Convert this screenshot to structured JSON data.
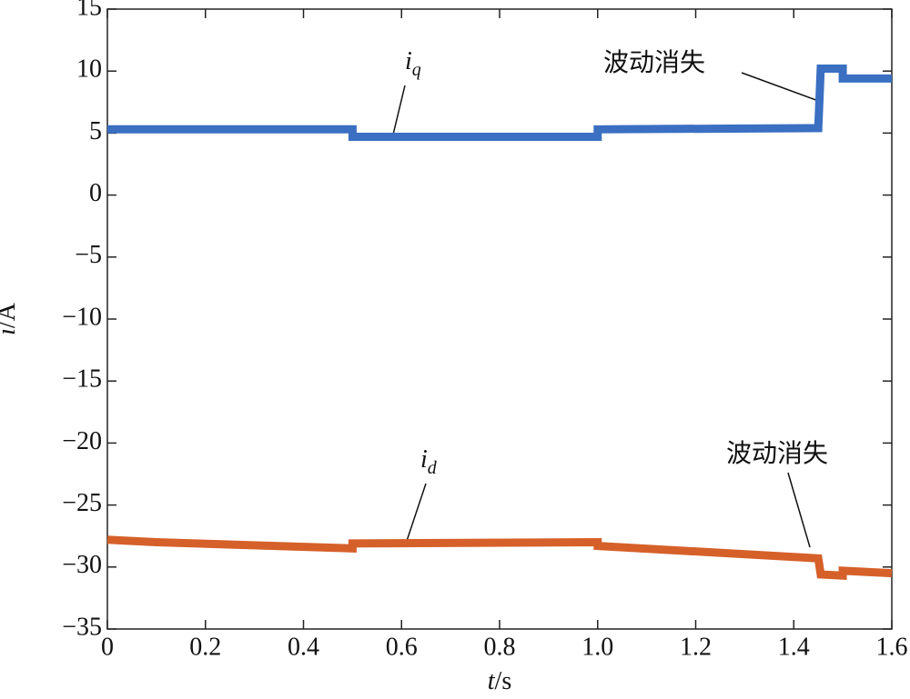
{
  "chart_data": {
    "type": "line",
    "xlabel": {
      "symbol": "t",
      "unit": "/s"
    },
    "ylabel": {
      "symbol": "i",
      "unit": "/A"
    },
    "x": [
      0,
      0.1,
      0.5,
      0.5,
      1.0,
      1.0,
      1.45,
      1.455,
      1.5,
      1.5,
      1.6
    ],
    "series": [
      {
        "name": "i",
        "subscript": "q",
        "color": "#3a6fc2",
        "values": [
          5.3,
          5.3,
          5.3,
          4.7,
          4.7,
          5.3,
          5.4,
          10.2,
          10.2,
          9.4,
          9.4
        ]
      },
      {
        "name": "i",
        "subscript": "d",
        "color": "#d6602a",
        "values": [
          -27.8,
          -28.0,
          -28.5,
          -28.1,
          -28.0,
          -28.3,
          -29.3,
          -30.6,
          -30.7,
          -30.3,
          -30.5
        ]
      }
    ],
    "annotations": [
      "波动消失",
      "波动消失"
    ],
    "xlim": [
      0,
      1.6
    ],
    "ylim": [
      -35,
      15
    ],
    "xticks": [
      0,
      0.2,
      0.4,
      0.6,
      0.8,
      {
        "value": 1.0,
        "label": "1.0"
      },
      1.2,
      1.4,
      1.6
    ],
    "yticks": [
      15,
      10,
      5,
      0,
      {
        "value": -5,
        "label": "−5"
      },
      {
        "value": -10,
        "label": "−10"
      },
      {
        "value": -15,
        "label": "−15"
      },
      {
        "value": -20,
        "label": "−20"
      },
      {
        "value": -25,
        "label": "−25"
      },
      {
        "value": -30,
        "label": "−30"
      },
      {
        "value": -35,
        "label": "−35"
      }
    ]
  }
}
